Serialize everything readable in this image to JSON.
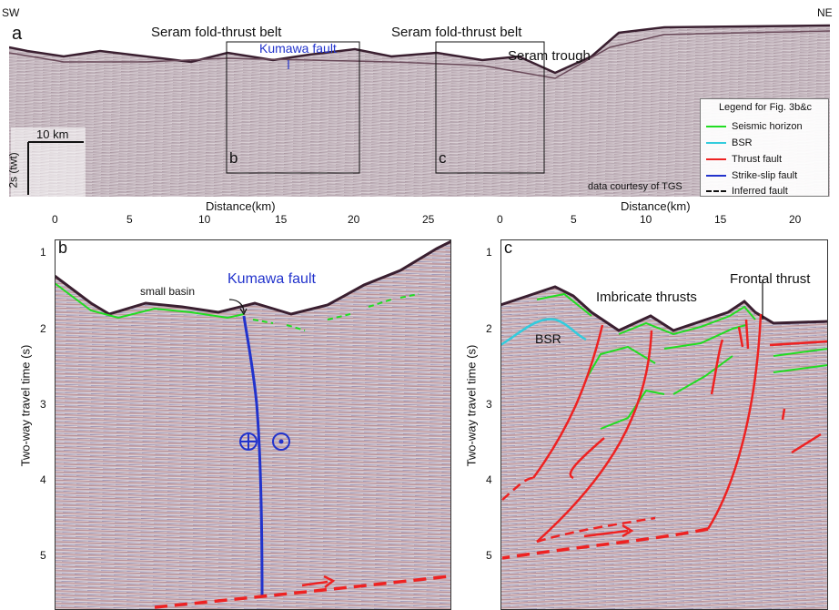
{
  "top": {
    "sw": "SW",
    "ne": "NE",
    "panel_letter": "a",
    "label_belt_1": "Seram fold-thrust belt",
    "label_belt_2": "Seram fold-thrust belt",
    "label_fault": "Kumawa fault",
    "label_trough": "Seram trough",
    "box_b_letter": "b",
    "box_c_letter": "c",
    "scale_h": "10 km",
    "scale_v": "2s (twt)",
    "credit": "data courtesy of TGS"
  },
  "legend": {
    "title": "Legend for Fig. 3b&c",
    "items": [
      {
        "label": "Seismic horizon",
        "color": "#22dd22",
        "style": "solid"
      },
      {
        "label": "BSR",
        "color": "#33ccdd",
        "style": "solid"
      },
      {
        "label": "Thrust fault",
        "color": "#ee2222",
        "style": "solid"
      },
      {
        "label": "Strike-slip fault",
        "color": "#2233cc",
        "style": "solid"
      },
      {
        "label": "Inferred fault",
        "color": "#111111",
        "style": "dashed"
      }
    ]
  },
  "panel_b": {
    "letter": "b",
    "x_title": "Distance(km)",
    "x_ticks": [
      "0",
      "5",
      "10",
      "15",
      "20",
      "25"
    ],
    "y_title": "Two-way travel time (s)",
    "y_ticks": [
      "1",
      "2",
      "3",
      "4",
      "5"
    ],
    "label_basin": "small basin",
    "label_fault": "Kumawa fault"
  },
  "panel_c": {
    "letter": "c",
    "x_title": "Distance(km)",
    "x_ticks": [
      "0",
      "5",
      "10",
      "15",
      "20"
    ],
    "y_title": "Two-way travel time (s)",
    "y_ticks": [
      "1",
      "2",
      "3",
      "4",
      "5"
    ],
    "label_bsr": "BSR",
    "label_imbricate": "Imbricate thrusts",
    "label_frontal": "Frontal thrust"
  }
}
